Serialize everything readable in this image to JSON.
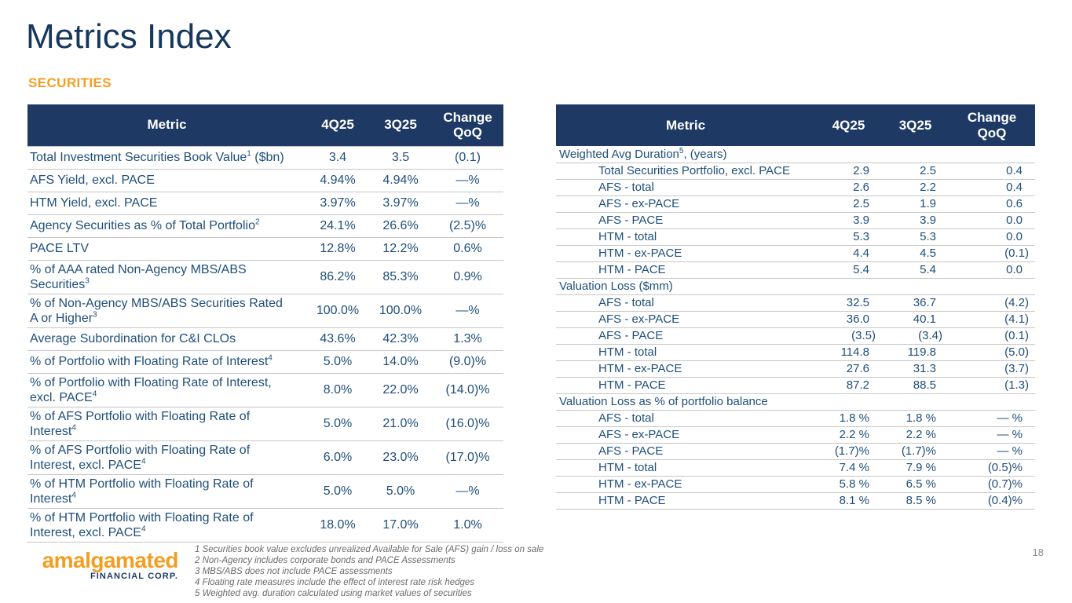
{
  "page": {
    "title": "Metrics Index",
    "section_label": "SECURITIES",
    "page_number": "18"
  },
  "colors": {
    "header_navy": "#1e3a64",
    "text_navy": "#1f4e79",
    "title_navy": "#16375e",
    "accent_orange": "#f49d20",
    "divider_gray": "#c6c6c6",
    "footnote_gray": "#6a6a6a"
  },
  "table_headers": {
    "metric": "Metric",
    "q4": "4Q25",
    "q3": "3Q25",
    "change": "Change\nQoQ"
  },
  "left_table": {
    "rows": [
      {
        "pre": "Total Investment Securities Book Value",
        "sup": "1",
        "post": " ($bn)",
        "q4": "3.4",
        "q3": "3.5",
        "chg": "(0.1)"
      },
      {
        "pre": "AFS Yield, excl. PACE",
        "sup": "",
        "post": "",
        "q4": "4.94%",
        "q3": "4.94%",
        "chg": "—%"
      },
      {
        "pre": "HTM Yield, excl. PACE",
        "sup": "",
        "post": "",
        "q4": "3.97%",
        "q3": "3.97%",
        "chg": "—%"
      },
      {
        "pre": "Agency Securities as % of Total Portfolio",
        "sup": "2",
        "post": "",
        "q4": "24.1%",
        "q3": "26.6%",
        "chg": "(2.5)%"
      },
      {
        "pre": "PACE LTV",
        "sup": "",
        "post": "",
        "q4": "12.8%",
        "q3": "12.2%",
        "chg": "0.6%"
      },
      {
        "pre": "% of AAA rated Non-Agency MBS/ABS\nSecurities",
        "sup": "3",
        "post": "",
        "q4": "86.2%",
        "q3": "85.3%",
        "chg": "0.9%"
      },
      {
        "pre": "% of Non-Agency MBS/ABS Securities Rated\nA or Higher",
        "sup": "3",
        "post": "",
        "q4": "100.0%",
        "q3": "100.0%",
        "chg": "—%"
      },
      {
        "pre": "Average Subordination for C&I CLOs",
        "sup": "",
        "post": "",
        "q4": "43.6%",
        "q3": "42.3%",
        "chg": "1.3%"
      },
      {
        "pre": "% of Portfolio with Floating Rate of Interest",
        "sup": "4",
        "post": "",
        "q4": "5.0%",
        "q3": "14.0%",
        "chg": "(9.0)%"
      },
      {
        "pre": "% of Portfolio with Floating Rate of Interest,\nexcl. PACE",
        "sup": "4",
        "post": "",
        "q4": "8.0%",
        "q3": "22.0%",
        "chg": "(14.0)%"
      },
      {
        "pre": "% of AFS Portfolio with Floating Rate of\nInterest",
        "sup": "4",
        "post": "",
        "q4": "5.0%",
        "q3": "21.0%",
        "chg": "(16.0)%"
      },
      {
        "pre": "% of AFS Portfolio with Floating Rate of\nInterest, excl. PACE",
        "sup": "4",
        "post": "",
        "q4": "6.0%",
        "q3": "23.0%",
        "chg": "(17.0)%"
      },
      {
        "pre": "% of HTM Portfolio with Floating Rate of\nInterest",
        "sup": "4",
        "post": "",
        "q4": "5.0%",
        "q3": "5.0%",
        "chg": "—%"
      },
      {
        "pre": "% of HTM Portfolio with Floating Rate of\nInterest, excl. PACE",
        "sup": "4",
        "post": "",
        "q4": "18.0%",
        "q3": "17.0%",
        "chg": "1.0%"
      }
    ]
  },
  "right_table": {
    "sections": [
      {
        "pre": "Weighted Avg Duration",
        "sup": "5",
        "post": ", (years)",
        "rows": [
          {
            "label": "Total Securities Portfolio, excl. PACE",
            "q4": "2.9",
            "q3": "2.5",
            "chg": "0.4"
          },
          {
            "label": "AFS - total",
            "q4": "2.6",
            "q3": "2.2",
            "chg": "0.4"
          },
          {
            "label": "AFS - ex-PACE",
            "q4": "2.5",
            "q3": "1.9",
            "chg": "0.6"
          },
          {
            "label": "AFS - PACE",
            "q4": "3.9",
            "q3": "3.9",
            "chg": "0.0"
          },
          {
            "label": "HTM - total",
            "q4": "5.3",
            "q3": "5.3",
            "chg": "0.0"
          },
          {
            "label": "HTM - ex-PACE",
            "q4": "4.4",
            "q3": "4.5",
            "chg": "(0.1)"
          },
          {
            "label": "HTM - PACE",
            "q4": "5.4",
            "q3": "5.4",
            "chg": "0.0"
          }
        ]
      },
      {
        "pre": "Valuation Loss ($mm)",
        "sup": "",
        "post": "",
        "rows": [
          {
            "label": "AFS - total",
            "q4": "32.5",
            "q3": "36.7",
            "chg": "(4.2)"
          },
          {
            "label": "AFS - ex-PACE",
            "q4": "36.0",
            "q3": "40.1",
            "chg": "(4.1)"
          },
          {
            "label": "AFS - PACE",
            "q4": "(3.5)",
            "q3": "(3.4)",
            "chg": "(0.1)"
          },
          {
            "label": "HTM - total",
            "q4": "114.8",
            "q3": "119.8",
            "chg": "(5.0)"
          },
          {
            "label": "HTM - ex-PACE",
            "q4": "27.6",
            "q3": "31.3",
            "chg": "(3.7)"
          },
          {
            "label": "HTM - PACE",
            "q4": "87.2",
            "q3": "88.5",
            "chg": "(1.3)"
          }
        ]
      },
      {
        "pre": "Valuation Loss as % of portfolio balance",
        "sup": "",
        "post": "",
        "rows": [
          {
            "label": "AFS - total",
            "q4": "1.8 %",
            "q3": "1.8 %",
            "chg": "— %"
          },
          {
            "label": "AFS - ex-PACE",
            "q4": "2.2 %",
            "q3": "2.2 %",
            "chg": "— %"
          },
          {
            "label": "AFS - PACE",
            "q4": "(1.7)%",
            "q3": "(1.7)%",
            "chg": "— %"
          },
          {
            "label": "HTM - total",
            "q4": "7.4 %",
            "q3": "7.9 %",
            "chg": "(0.5)%"
          },
          {
            "label": "HTM - ex-PACE",
            "q4": "5.8 %",
            "q3": "6.5 %",
            "chg": "(0.7)%"
          },
          {
            "label": "HTM - PACE",
            "q4": "8.1 %",
            "q3": "8.5 %",
            "chg": "(0.4)%"
          }
        ]
      }
    ]
  },
  "footnotes": [
    "1 Securities book value excludes unrealized Available for Sale (AFS) gain / loss on sale",
    "2 Non-Agency includes corporate bonds and PACE Assessments",
    "3 MBS/ABS does not include PACE assessments",
    "4 Floating rate measures include the effect of interest rate risk hedges",
    "5 Weighted avg. duration calculated using market values of securities"
  ],
  "logo": {
    "wordmark": "amalgamated",
    "subtext": "FINANCIAL CORP."
  }
}
